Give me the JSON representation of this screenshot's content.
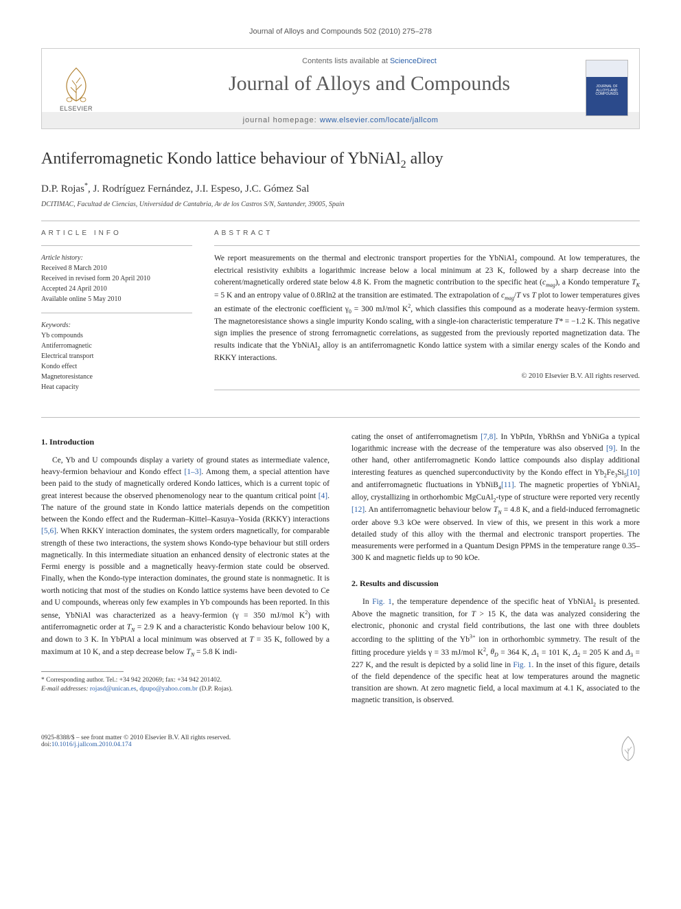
{
  "running_header": "Journal of Alloys and Compounds 502 (2010) 275–278",
  "masthead": {
    "contents_prefix": "Contents lists available at ",
    "contents_link": "ScienceDirect",
    "journal_title": "Journal of Alloys and Compounds",
    "homepage_prefix": "journal homepage: ",
    "homepage_url": "www.elsevier.com/locate/jallcom",
    "publisher_word": "ELSEVIER",
    "cover_label": "JOURNAL OF ALLOYS AND COMPOUNDS"
  },
  "article": {
    "title_html": "Antiferromagnetic Kondo lattice behaviour of YbNiAl<sub>2</sub> alloy",
    "authors_html": "D.P. Rojas<sup>*</sup>, J. Rodríguez Fernández, J.I. Espeso, J.C. Gómez Sal",
    "affiliation": "DCITIMAC, Facultad de Ciencias, Universidad de Cantabria, Av de los Castros S/N, Santander, 39005, Spain"
  },
  "info": {
    "label": "ARTICLE INFO",
    "history_heading": "Article history:",
    "history": [
      "Received 8 March 2010",
      "Received in revised form 20 April 2010",
      "Accepted 24 April 2010",
      "Available online 5 May 2010"
    ],
    "keywords_heading": "Keywords:",
    "keywords": [
      "Yb compounds",
      "Antiferromagnetic",
      "Electrical transport",
      "Kondo effect",
      "Magnetoresistance",
      "Heat capacity"
    ]
  },
  "abstract": {
    "label": "ABSTRACT",
    "text_html": "We report measurements on the thermal and electronic transport properties for the YbNiAl<sub>2</sub> compound. At low temperatures, the electrical resistivity exhibits a logarithmic increase below a local minimum at 23 K, followed by a sharp decrease into the coherent/magnetically ordered state below 4.8 K. From the magnetic contribution to the specific heat (<i>c<sub>mag</sub></i>), a Kondo temperature <i>T<sub>K</sub></i> = 5 K and an entropy value of 0.8Rln2 at the transition are estimated. The extrapolation of <i>c<sub>mag</sub></i>/<i>T</i> vs <i>T</i> plot to lower temperatures gives an estimate of the electronic coefficient γ<sub>0</sub> = 300 mJ/mol K<sup>2</sup>, which classifies this compound as a moderate heavy-fermion system. The magnetoresistance shows a single impurity Kondo scaling, with a single-ion characteristic temperature <i>T*</i> = −1.2 K. This negative sign implies the presence of strong ferromagnetic correlations, as suggested from the previously reported magnetization data. The results indicate that the YbNiAl<sub>2</sub> alloy is an antiferromagnetic Kondo lattice system with a similar energy scales of the Kondo and RKKY interactions.",
    "copyright": "© 2010 Elsevier B.V. All rights reserved."
  },
  "body": {
    "col1": {
      "heading": "1. Introduction",
      "p1_html": "Ce, Yb and U compounds display a variety of ground states as intermediate valence, heavy-fermion behaviour and Kondo effect <span class=\"ref\">[1–3]</span>. Among them, a special attention have been paid to the study of magnetically ordered Kondo lattices, which is a current topic of great interest because the observed phenomenology near to the quantum critical point <span class=\"ref\">[4]</span>. The nature of the ground state in Kondo lattice materials depends on the competition between the Kondo effect and the Ruderman–Kittel–Kasuya–Yosida (RKKY) interactions <span class=\"ref\">[5,6]</span>. When RKKY interaction dominates, the system orders magnetically, for comparable strength of these two interactions, the system shows Kondo-type behaviour but still orders magnetically. In this intermediate situation an enhanced density of electronic states at the Fermi energy is possible and a magnetically heavy-fermion state could be observed. Finally, when the Kondo-type interaction dominates, the ground state is nonmagnetic. It is worth noticing that most of the studies on Kondo lattice systems have been devoted to Ce and U compounds, whereas only few examples in Yb compounds has been reported. In this sense, YbNiAl was characterized as a heavy-fermion (γ = 350 mJ/mol K<sup>2</sup>) with antiferromagnetic order at <i>T<sub>N</sub></i> = 2.9 K and a characteristic Kondo behaviour below 100 K, and down to 3 K. In YbPtAl a local minimum was observed at <i>T</i> = 35 K, followed by a maximum at 10 K, and a step decrease below <i>T<sub>N</sub></i> = 5.8 K indi-"
    },
    "col2": {
      "p1_html": "cating the onset of antiferromagnetism <span class=\"ref\">[7,8]</span>. In YbPtIn, YbRhSn and YbNiGa a typical logarithmic increase with the decrease of the temperature was also observed <span class=\"ref\">[9]</span>. In the other hand, other antiferromagnetic Kondo lattice compounds also display additional interesting features as quenched superconductivity by the Kondo effect in Yb<sub>2</sub>Fe<sub>3</sub>Si<sub>5</sub><span class=\"ref\">[10]</span> and antiferromagnetic fluctuations in YbNiB<sub>4</sub><span class=\"ref\">[11]</span>. The magnetic properties of YbNiAl<sub>2</sub> alloy, crystallizing in orthorhombic MgCuAl<sub>2</sub>-type of structure were reported very recently <span class=\"ref\">[12]</span>. An antiferromagnetic behaviour below <i>T<sub>N</sub></i> = 4.8 K, and a field-induced ferromagnetic order above 9.3 kOe were observed. In view of this, we present in this work a more detailed study of this alloy with the thermal and electronic transport properties. The measurements were performed in a Quantum Design PPMS in the temperature range 0.35–300 K and magnetic fields up to 90 kOe.",
      "heading": "2. Results and discussion",
      "p2_html": "In <span class=\"ref\">Fig. 1</span>, the temperature dependence of the specific heat of YbNiAl<sub>2</sub> is presented. Above the magnetic transition, for <i>T</i> > 15 K, the data was analyzed considering the electronic, phononic and crystal field contributions, the last one with three doublets according to the splitting of the Yb<sup>3+</sup> ion in orthorhombic symmetry. The result of the fitting procedure yields γ = 33 mJ/mol K<sup>2</sup>, <i>θ<sub>D</sub></i> = 364 K, <i>Δ</i><sub>1</sub> = 101 K, <i>Δ</i><sub>2</sub> = 205 K and <i>Δ</i><sub>3</sub> = 227 K, and the result is depicted by a solid line in <span class=\"ref\">Fig. 1</span>. In the inset of this figure, details of the field dependence of the specific heat at low temperatures around the magnetic transition are shown. At zero magnetic field, a local maximum at 4.1 K, associated to the magnetic transition, is observed."
    }
  },
  "footnote": {
    "corresponding": "* Corresponding author. Tel.: +34 942 202069; fax: +34 942 201402.",
    "email_label": "E-mail addresses:",
    "email1": "rojasd@unican.es",
    "email2": "dpupo@yahoo.com.br",
    "email_suffix": "(D.P. Rojas)."
  },
  "footer": {
    "left_line1": "0925-8388/$ – see front matter © 2010 Elsevier B.V. All rights reserved.",
    "left_line2_prefix": "doi:",
    "doi": "10.1016/j.jallcom.2010.04.174"
  },
  "colors": {
    "link": "#2b5fa8",
    "rule": "#bbbbbb",
    "text": "#222222",
    "muted": "#555555"
  }
}
